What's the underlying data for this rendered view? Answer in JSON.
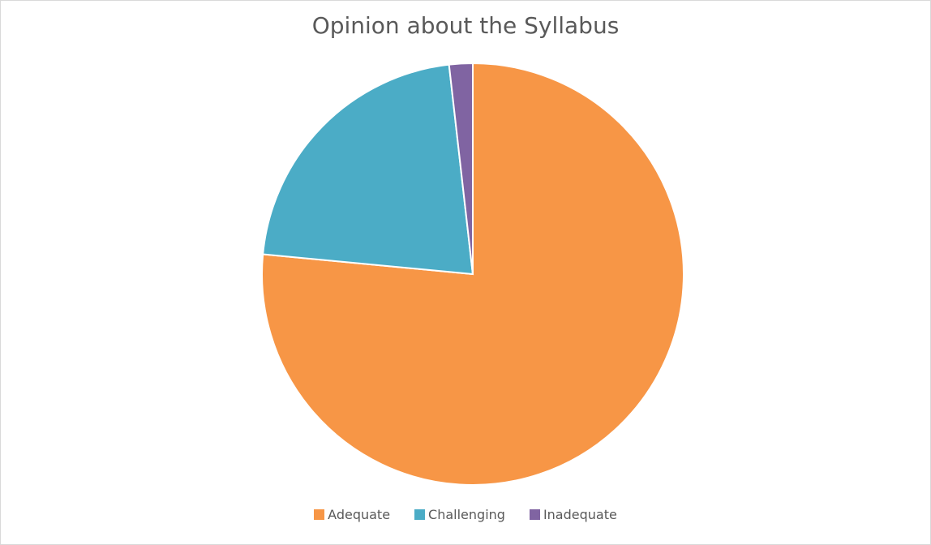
{
  "chart_data": {
    "type": "pie",
    "title": "Opinion about the Syllabus",
    "categories": [
      "Adequate",
      "Challenging",
      "Inadequate"
    ],
    "values": [
      76.5,
      21.7,
      1.8
    ],
    "colors": [
      "#F79646",
      "#4BACC6",
      "#8064A2"
    ],
    "legend_position": "bottom",
    "start_angle": "12 o'clock",
    "direction": "clockwise"
  }
}
